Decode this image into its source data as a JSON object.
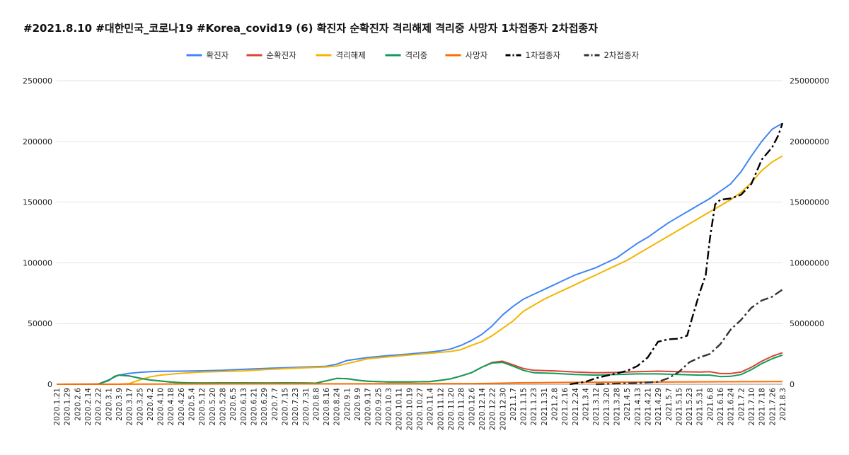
{
  "chart_data": {
    "type": "line",
    "title": "#2021.8.10 #대한민국_코로나19 #Korea_covid19 (6) 확진자 순확진자 격리해제 격리중 사망자 1차접종자 2차접종자",
    "legend_position": "top",
    "grid": true,
    "y_left": {
      "min": 0,
      "max": 250000,
      "ticks": [
        "0",
        "50000",
        "100000",
        "150000",
        "200000",
        "250000"
      ]
    },
    "y_right": {
      "min": 0,
      "max": 25000000,
      "ticks": [
        "0",
        "5000000",
        "10000000",
        "15000000",
        "20000000",
        "25000000"
      ]
    },
    "x_ticks": [
      "2020.1.21",
      "2020.1.29",
      "2020.2.6",
      "2020.2.14",
      "2020.2.22",
      "2020.3.1",
      "2020.3.9",
      "2020.3.17",
      "2020.3.25",
      "2020.4.2",
      "2020.4.10",
      "2020.4.18",
      "2020.4.26",
      "2020.5.4",
      "2020.5.12",
      "2020.5.20",
      "2020.5.28",
      "2020.6.5",
      "2020.6.13",
      "2020.6.21",
      "2020.6.29",
      "2020.7.7",
      "2020.7.15",
      "2020.7.23",
      "2020.7.31",
      "2020.8.8",
      "2020.8.16",
      "2020.8.24",
      "2020.9.1",
      "2020.9.9",
      "2020.9.17",
      "2020.9.25",
      "2020.10.3",
      "2020.10.11",
      "2020.10.19",
      "2020.10.27",
      "2020.11.4",
      "2020.11.12",
      "2020.11.20",
      "2020.11.28",
      "2020.12.6",
      "2020.12.14",
      "2020.12.22",
      "2020.12.30",
      "2021.1.7",
      "2021.1.15",
      "2021.1.23",
      "2021.1.31",
      "2021.2.8",
      "2021.2.16",
      "2021.2.24",
      "2021.3.4",
      "2021.3.12",
      "2021.3.20",
      "2021.3.28",
      "2021.4.5",
      "2021.4.13",
      "2021.4.21",
      "2021.4.29",
      "2021.5.7",
      "2021.5.15",
      "2021.5.23",
      "2021.5.31",
      "2021.6.8",
      "2021.6.16",
      "2021.6.24",
      "2021.7.2",
      "2021.7.10",
      "2021.7.18",
      "2021.7.26",
      "2021.8.3"
    ],
    "series": [
      {
        "name": "확진자",
        "axis": "left",
        "color": "#4285f4",
        "dash": "none",
        "points": [
          [
            0,
            0
          ],
          [
            4,
            100
          ],
          [
            5,
            3500
          ],
          [
            6,
            7500
          ],
          [
            7,
            9000
          ],
          [
            8,
            9800
          ],
          [
            9,
            10300
          ],
          [
            10,
            10600
          ],
          [
            12,
            10800
          ],
          [
            14,
            11100
          ],
          [
            16,
            11500
          ],
          [
            18,
            12300
          ],
          [
            20,
            13000
          ],
          [
            22,
            13600
          ],
          [
            24,
            14200
          ],
          [
            26,
            14800
          ],
          [
            27,
            16500
          ],
          [
            28,
            19500
          ],
          [
            30,
            22000
          ],
          [
            32,
            23600
          ],
          [
            34,
            24900
          ],
          [
            36,
            26500
          ],
          [
            37,
            27500
          ],
          [
            38,
            29000
          ],
          [
            39,
            32000
          ],
          [
            40,
            36000
          ],
          [
            41,
            41000
          ],
          [
            42,
            48000
          ],
          [
            43,
            57000
          ],
          [
            44,
            64000
          ],
          [
            45,
            70000
          ],
          [
            46,
            74000
          ],
          [
            47,
            78000
          ],
          [
            48,
            82000
          ],
          [
            49,
            86000
          ],
          [
            50,
            90000
          ],
          [
            51,
            93000
          ],
          [
            52,
            96000
          ],
          [
            53,
            100000
          ],
          [
            54,
            104000
          ],
          [
            55,
            110000
          ],
          [
            56,
            116000
          ],
          [
            57,
            121000
          ],
          [
            58,
            127000
          ],
          [
            59,
            133000
          ],
          [
            60,
            138000
          ],
          [
            61,
            143000
          ],
          [
            62,
            148000
          ],
          [
            63,
            153000
          ],
          [
            64,
            159000
          ],
          [
            65,
            165000
          ],
          [
            66,
            175000
          ],
          [
            67,
            188000
          ],
          [
            68,
            200000
          ],
          [
            69,
            210000
          ],
          [
            70,
            215000
          ]
        ]
      },
      {
        "name": "순확진자",
        "axis": "left",
        "color": "#db4437",
        "dash": "none",
        "points": [
          [
            0,
            0
          ],
          [
            4,
            100
          ],
          [
            5,
            3000
          ],
          [
            5.6,
            6500
          ],
          [
            6,
            7500
          ],
          [
            7,
            6800
          ],
          [
            8,
            5000
          ],
          [
            9,
            3500
          ],
          [
            10,
            2700
          ],
          [
            11,
            1800
          ],
          [
            12,
            1300
          ],
          [
            13,
            1100
          ],
          [
            14,
            1000
          ],
          [
            16,
            1100
          ],
          [
            18,
            1100
          ],
          [
            20,
            1000
          ],
          [
            22,
            1100
          ],
          [
            24,
            1000
          ],
          [
            25,
            900
          ],
          [
            26,
            2800
          ],
          [
            27,
            4800
          ],
          [
            28,
            4600
          ],
          [
            29,
            3300
          ],
          [
            30,
            2500
          ],
          [
            32,
            1900
          ],
          [
            34,
            1900
          ],
          [
            36,
            2200
          ],
          [
            37,
            3200
          ],
          [
            38,
            4500
          ],
          [
            39,
            6800
          ],
          [
            40,
            9500
          ],
          [
            41,
            14000
          ],
          [
            42,
            18000
          ],
          [
            43,
            19000
          ],
          [
            44,
            16000
          ],
          [
            45,
            13000
          ],
          [
            46,
            11500
          ],
          [
            48,
            11000
          ],
          [
            50,
            10000
          ],
          [
            52,
            9500
          ],
          [
            54,
            9800
          ],
          [
            56,
            10300
          ],
          [
            58,
            10800
          ],
          [
            60,
            10300
          ],
          [
            62,
            10000
          ],
          [
            63,
            10300
          ],
          [
            64,
            8800
          ],
          [
            65,
            8800
          ],
          [
            66,
            10000
          ],
          [
            67,
            14000
          ],
          [
            68,
            19000
          ],
          [
            69,
            23000
          ],
          [
            70,
            26000
          ]
        ]
      },
      {
        "name": "격리해제",
        "axis": "left",
        "color": "#f4b400",
        "dash": "none",
        "points": [
          [
            0,
            0
          ],
          [
            6,
            0
          ],
          [
            7,
            500
          ],
          [
            8,
            3500
          ],
          [
            9,
            6000
          ],
          [
            10,
            7500
          ],
          [
            12,
            9000
          ],
          [
            14,
            10000
          ],
          [
            16,
            10500
          ],
          [
            18,
            11000
          ],
          [
            20,
            12000
          ],
          [
            22,
            12800
          ],
          [
            24,
            13500
          ],
          [
            26,
            14200
          ],
          [
            27,
            15000
          ],
          [
            28,
            17000
          ],
          [
            29,
            19000
          ],
          [
            30,
            21000
          ],
          [
            32,
            22500
          ],
          [
            34,
            24000
          ],
          [
            36,
            25500
          ],
          [
            38,
            27000
          ],
          [
            39,
            28500
          ],
          [
            40,
            32000
          ],
          [
            41,
            35000
          ],
          [
            42,
            40000
          ],
          [
            43,
            46000
          ],
          [
            44,
            52000
          ],
          [
            45,
            60000
          ],
          [
            46,
            65000
          ],
          [
            47,
            70000
          ],
          [
            48,
            74000
          ],
          [
            49,
            78000
          ],
          [
            50,
            82000
          ],
          [
            51,
            86000
          ],
          [
            52,
            90000
          ],
          [
            53,
            94000
          ],
          [
            54,
            98000
          ],
          [
            55,
            102000
          ],
          [
            56,
            107000
          ],
          [
            57,
            112000
          ],
          [
            58,
            117000
          ],
          [
            59,
            122000
          ],
          [
            60,
            127000
          ],
          [
            61,
            132000
          ],
          [
            62,
            137000
          ],
          [
            63,
            142000
          ],
          [
            64,
            147000
          ],
          [
            65,
            152000
          ],
          [
            66,
            158000
          ],
          [
            67,
            166000
          ],
          [
            68,
            176000
          ],
          [
            69,
            183000
          ],
          [
            70,
            188000
          ]
        ]
      },
      {
        "name": "격리중",
        "axis": "left",
        "color": "#0f9d58",
        "dash": "none",
        "points": [
          [
            0,
            0
          ],
          [
            4,
            100
          ],
          [
            5,
            3000
          ],
          [
            5.6,
            6500
          ],
          [
            6,
            7500
          ],
          [
            7,
            6800
          ],
          [
            8,
            5000
          ],
          [
            9,
            3500
          ],
          [
            10,
            2700
          ],
          [
            11,
            1800
          ],
          [
            12,
            1300
          ],
          [
            13,
            1100
          ],
          [
            14,
            1000
          ],
          [
            16,
            1100
          ],
          [
            18,
            1100
          ],
          [
            20,
            1000
          ],
          [
            22,
            1100
          ],
          [
            24,
            1000
          ],
          [
            25,
            900
          ],
          [
            26,
            2800
          ],
          [
            27,
            4800
          ],
          [
            28,
            4600
          ],
          [
            29,
            3300
          ],
          [
            30,
            2500
          ],
          [
            32,
            1900
          ],
          [
            34,
            1900
          ],
          [
            36,
            2200
          ],
          [
            37,
            3200
          ],
          [
            38,
            4500
          ],
          [
            39,
            6800
          ],
          [
            40,
            9500
          ],
          [
            41,
            14000
          ],
          [
            42,
            17500
          ],
          [
            43,
            18000
          ],
          [
            44,
            15000
          ],
          [
            45,
            11500
          ],
          [
            46,
            9500
          ],
          [
            48,
            9000
          ],
          [
            50,
            8000
          ],
          [
            52,
            7500
          ],
          [
            54,
            8000
          ],
          [
            56,
            8500
          ],
          [
            58,
            8500
          ],
          [
            60,
            8000
          ],
          [
            62,
            7500
          ],
          [
            63,
            7500
          ],
          [
            64,
            6300
          ],
          [
            65,
            6500
          ],
          [
            66,
            8000
          ],
          [
            67,
            12000
          ],
          [
            68,
            17000
          ],
          [
            69,
            21000
          ],
          [
            70,
            24000
          ]
        ]
      },
      {
        "name": "사망자",
        "axis": "left",
        "color": "#ff6d01",
        "dash": "none",
        "points": [
          [
            0,
            0
          ],
          [
            6,
            50
          ],
          [
            10,
            200
          ],
          [
            20,
            280
          ],
          [
            30,
            380
          ],
          [
            40,
            500
          ],
          [
            42,
            700
          ],
          [
            45,
            1200
          ],
          [
            50,
            1600
          ],
          [
            60,
            1900
          ],
          [
            70,
            2150
          ]
        ]
      },
      {
        "name": "1차접종자",
        "axis": "right",
        "color": "#000000",
        "dash": "12 4 3 4",
        "points": [
          [
            49.5,
            0
          ],
          [
            51,
            200000
          ],
          [
            52,
            500000
          ],
          [
            53,
            700000
          ],
          [
            54,
            900000
          ],
          [
            55,
            1100000
          ],
          [
            56,
            1500000
          ],
          [
            57,
            2200000
          ],
          [
            58,
            3500000
          ],
          [
            59,
            3700000
          ],
          [
            60,
            3750000
          ],
          [
            60.8,
            4000000
          ],
          [
            61.3,
            5500000
          ],
          [
            62,
            7500000
          ],
          [
            62.6,
            9000000
          ],
          [
            63,
            12000000
          ],
          [
            63.5,
            14800000
          ],
          [
            64,
            15200000
          ],
          [
            65,
            15300000
          ],
          [
            66,
            15600000
          ],
          [
            67,
            16500000
          ],
          [
            68,
            18500000
          ],
          [
            69,
            19500000
          ],
          [
            69.6,
            20500000
          ],
          [
            70,
            21500000
          ]
        ]
      },
      {
        "name": "2차접종자",
        "axis": "right",
        "color": "#333333",
        "dash": "12 4 3 4",
        "points": [
          [
            52,
            0
          ],
          [
            54,
            50000
          ],
          [
            56,
            100000
          ],
          [
            58,
            200000
          ],
          [
            59,
            500000
          ],
          [
            60,
            1000000
          ],
          [
            61,
            1800000
          ],
          [
            62,
            2200000
          ],
          [
            63,
            2500000
          ],
          [
            64,
            3300000
          ],
          [
            65,
            4500000
          ],
          [
            66,
            5300000
          ],
          [
            67,
            6300000
          ],
          [
            68,
            6900000
          ],
          [
            69,
            7200000
          ],
          [
            70,
            7800000
          ]
        ]
      }
    ]
  }
}
